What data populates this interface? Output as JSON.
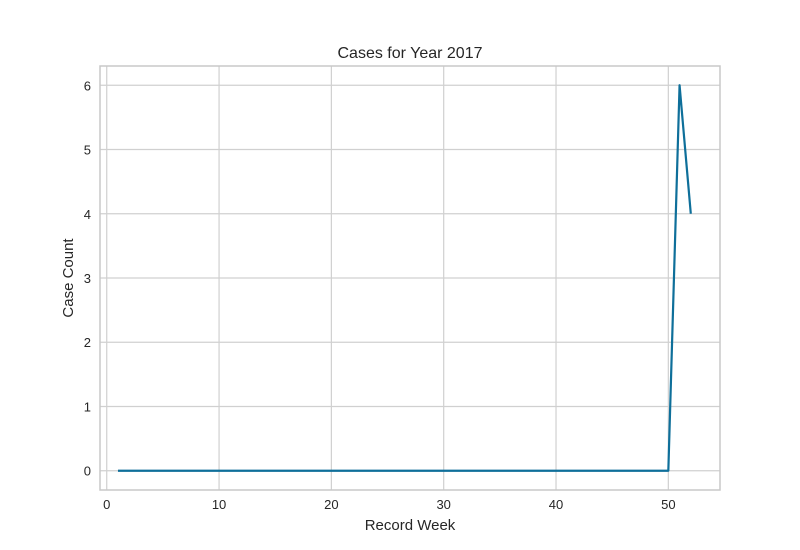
{
  "chart_data": {
    "type": "line",
    "title": "Cases for Year 2017",
    "xlabel": "Record Week",
    "ylabel": "Case Count",
    "xlim": [
      -0.6,
      54.6
    ],
    "ylim": [
      -0.3,
      6.3
    ],
    "xticks": [
      0,
      10,
      20,
      30,
      40,
      50
    ],
    "yticks": [
      0,
      1,
      2,
      3,
      4,
      5,
      6
    ],
    "grid": true,
    "series": [
      {
        "color": "#0e6f9a",
        "x": [
          1,
          50,
          51,
          52
        ],
        "y": [
          0,
          0,
          6,
          4
        ]
      }
    ]
  }
}
